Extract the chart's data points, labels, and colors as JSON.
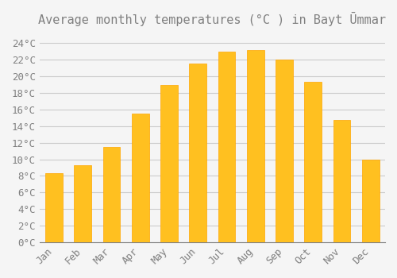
{
  "title": "Average monthly temperatures (°C ) in Bayt Ūmmar",
  "months": [
    "Jan",
    "Feb",
    "Mar",
    "Apr",
    "May",
    "Jun",
    "Jul",
    "Aug",
    "Sep",
    "Oct",
    "Nov",
    "Dec"
  ],
  "values": [
    8.3,
    9.3,
    11.5,
    15.5,
    19.0,
    21.5,
    23.0,
    23.2,
    22.0,
    19.3,
    14.7,
    10.0
  ],
  "bar_color": "#FFC020",
  "bar_edge_color": "#FFA500",
  "background_color": "#F5F5F5",
  "grid_color": "#CCCCCC",
  "text_color": "#808080",
  "ylim": [
    0,
    25
  ],
  "ytick_step": 2,
  "title_fontsize": 11,
  "tick_fontsize": 9,
  "figsize": [
    5.0,
    3.5
  ],
  "dpi": 100
}
